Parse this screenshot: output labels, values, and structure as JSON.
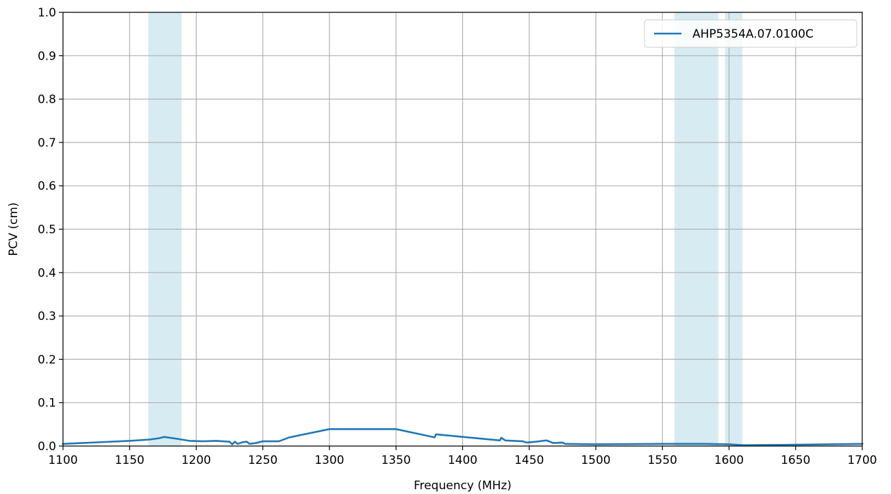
{
  "chart_data": {
    "type": "line",
    "xlabel": "Frequency (MHz)",
    "ylabel": "PCV (cm)",
    "xlim": [
      1100,
      1700
    ],
    "ylim": [
      0.0,
      1.0
    ],
    "grid": true,
    "legend_position": "top-right",
    "x_ticks": [
      "1100",
      "1150",
      "1200",
      "1250",
      "1300",
      "1350",
      "1400",
      "1450",
      "1500",
      "1550",
      "1600",
      "1650",
      "1700"
    ],
    "y_ticks": [
      "0.0",
      "0.1",
      "0.2",
      "0.3",
      "0.4",
      "0.5",
      "0.6",
      "0.7",
      "0.8",
      "0.9",
      "1.0"
    ],
    "shaded_bands": [
      {
        "from": 1164,
        "to": 1189
      },
      {
        "from": 1559,
        "to": 1592
      },
      {
        "from": 1597,
        "to": 1610
      }
    ],
    "series": [
      {
        "name": "AHP5354A.07.0100C",
        "color": "#1f77b4",
        "points": [
          [
            1100,
            0.005
          ],
          [
            1150,
            0.012
          ],
          [
            1165,
            0.015
          ],
          [
            1172,
            0.018
          ],
          [
            1176,
            0.021
          ],
          [
            1185,
            0.017
          ],
          [
            1195,
            0.012
          ],
          [
            1205,
            0.011
          ],
          [
            1215,
            0.012
          ],
          [
            1225,
            0.01
          ],
          [
            1227,
            0.004
          ],
          [
            1229,
            0.01
          ],
          [
            1231,
            0.005
          ],
          [
            1235,
            0.009
          ],
          [
            1238,
            0.01
          ],
          [
            1240,
            0.005
          ],
          [
            1245,
            0.007
          ],
          [
            1250,
            0.011
          ],
          [
            1262,
            0.011
          ],
          [
            1270,
            0.02
          ],
          [
            1300,
            0.039
          ],
          [
            1350,
            0.039
          ],
          [
            1379,
            0.02
          ],
          [
            1380,
            0.027
          ],
          [
            1428,
            0.013
          ],
          [
            1429,
            0.019
          ],
          [
            1432,
            0.013
          ],
          [
            1445,
            0.011
          ],
          [
            1448,
            0.008
          ],
          [
            1455,
            0.01
          ],
          [
            1463,
            0.013
          ],
          [
            1468,
            0.007
          ],
          [
            1475,
            0.008
          ],
          [
            1477,
            0.005
          ],
          [
            1500,
            0.004
          ],
          [
            1550,
            0.005
          ],
          [
            1580,
            0.005
          ],
          [
            1600,
            0.004
          ],
          [
            1610,
            0.002
          ],
          [
            1650,
            0.003
          ],
          [
            1700,
            0.005
          ]
        ]
      }
    ]
  }
}
